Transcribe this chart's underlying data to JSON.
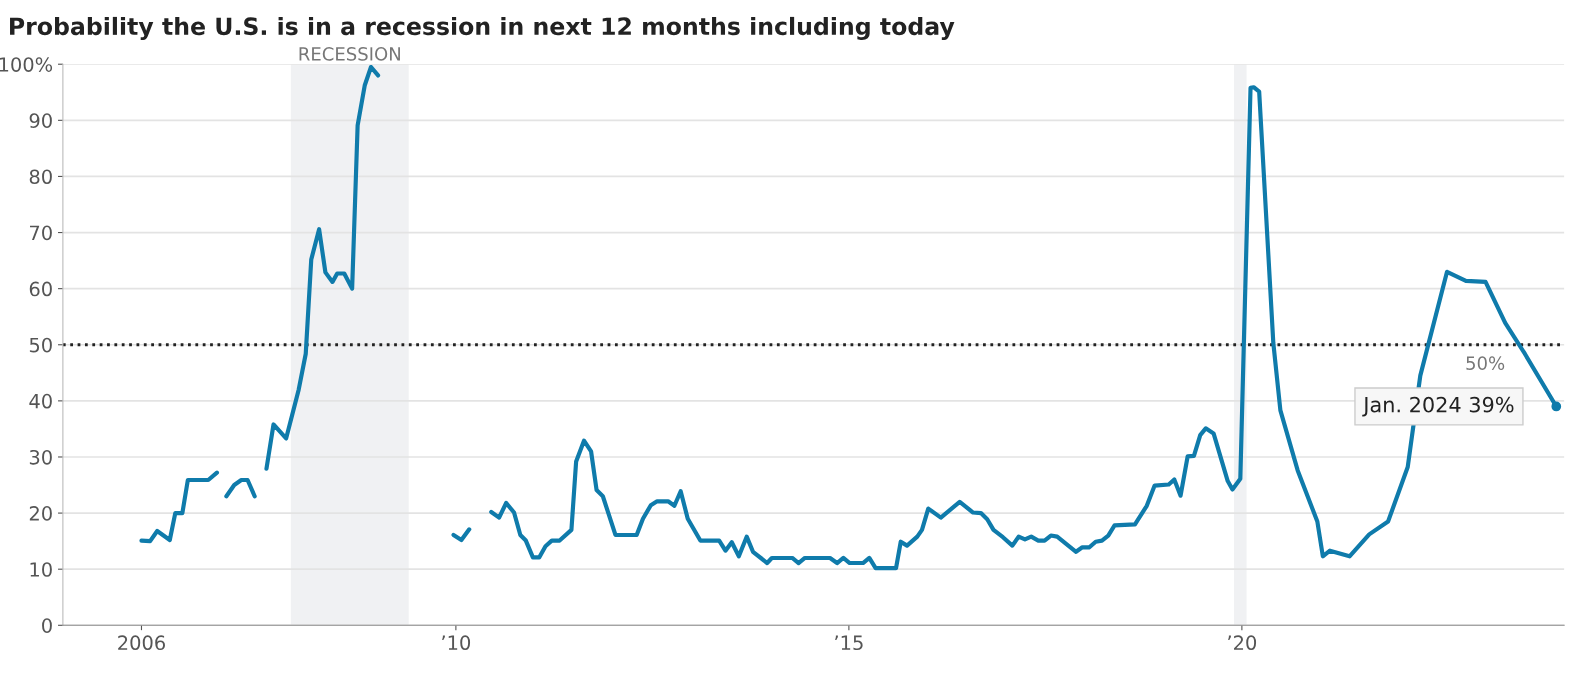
{
  "chart_data": {
    "type": "line",
    "title": "Probability the U.S. is in a recession in next 12 months including today",
    "xlim": [
      2005.0,
      2024.1
    ],
    "ylim": [
      0,
      100
    ],
    "xticks": [
      {
        "value": 2006,
        "label": "2006"
      },
      {
        "value": 2010,
        "label": "’10"
      },
      {
        "value": 2015,
        "label": "’15"
      },
      {
        "value": 2020,
        "label": "’20"
      }
    ],
    "yticks": [
      0,
      10,
      20,
      30,
      40,
      50,
      60,
      70,
      80,
      90,
      {
        "value": 100,
        "label": "100%"
      }
    ],
    "grid": "y",
    "legend": false,
    "marker": "none",
    "line_style": "solid",
    "bands": [
      {
        "axis": "x",
        "from": 2007.9,
        "to": 2009.4,
        "label": "RECESSION",
        "color": "#f0f1f3"
      },
      {
        "axis": "x",
        "from": 2019.9,
        "to": 2020.06,
        "color": "#f0f1f3"
      }
    ],
    "ref_lines": [
      {
        "axis": "y",
        "value": 50,
        "label": "50%",
        "color": "#222222",
        "line_style": "dotted"
      }
    ],
    "annotations": [
      {
        "text": "Jan. 2024 39%",
        "x": 2024.0,
        "y": 39
      }
    ],
    "series": [
      {
        "color": "#0f7bab",
        "x": [
          2006.0,
          2006.11,
          2006.2,
          2006.36,
          2006.43,
          2006.52,
          2006.59,
          2006.85,
          2006.96,
          2007.02,
          2007.08,
          2007.18,
          2007.27,
          2007.35,
          2007.44,
          2007.52,
          2007.59,
          2007.68,
          2007.84,
          2008.0,
          2008.09,
          2008.16,
          2008.26,
          2008.34,
          2008.43,
          2008.49,
          2008.58,
          2008.68,
          2008.75,
          2008.84,
          2008.92,
          2009.01,
          2009.5,
          2009.97,
          2010.07,
          2010.17,
          2010.3,
          2010.45,
          2010.55,
          2010.64,
          2010.74,
          2010.82,
          2010.89,
          2010.98,
          2011.06,
          2011.14,
          2011.22,
          2011.32,
          2011.47,
          2011.53,
          2011.63,
          2011.72,
          2011.79,
          2011.87,
          2012.03,
          2012.3,
          2012.38,
          2012.48,
          2012.56,
          2012.7,
          2012.78,
          2012.86,
          2012.95,
          2013.11,
          2013.35,
          2013.43,
          2013.51,
          2013.6,
          2013.7,
          2013.78,
          2013.96,
          2014.02,
          2014.28,
          2014.36,
          2014.44,
          2014.76,
          2014.85,
          2014.93,
          2015.01,
          2015.18,
          2015.26,
          2015.34,
          2015.6,
          2015.66,
          2015.74,
          2015.87,
          2015.93,
          2016.01,
          2016.17,
          2016.41,
          2016.58,
          2016.68,
          2016.76,
          2016.84,
          2016.96,
          2017.08,
          2017.16,
          2017.24,
          2017.32,
          2017.41,
          2017.49,
          2017.57,
          2017.65,
          2017.89,
          2017.97,
          2018.06,
          2018.14,
          2018.22,
          2018.3,
          2018.38,
          2018.64,
          2018.79,
          2018.89,
          2019.07,
          2019.14,
          2019.22,
          2019.31,
          2019.39,
          2019.47,
          2019.54,
          2019.64,
          2019.82,
          2019.88,
          2019.98,
          2020.11,
          2020.15,
          2020.22,
          2020.4,
          2020.49,
          2020.71,
          2020.96,
          2021.03,
          2021.12,
          2021.37,
          2021.62,
          2021.86,
          2022.11,
          2022.27,
          2022.61,
          2022.85,
          2023.1,
          2023.35,
          2023.6,
          2024.0
        ],
        "values": [
          15.1,
          15,
          16.8,
          15.2,
          20,
          20,
          25.9,
          25.9,
          27.2,
          null,
          23,
          25,
          25.9,
          25.9,
          23,
          null,
          27.9,
          35.8,
          33.3,
          42,
          48.4,
          65.2,
          70.6,
          62.9,
          61.2,
          62.7,
          62.7,
          60,
          89.1,
          96.2,
          99.5,
          98,
          null,
          16.1,
          15.2,
          17.1,
          null,
          20.2,
          19.2,
          21.8,
          20.1,
          16.1,
          15.1,
          12.1,
          12.1,
          14.1,
          15.1,
          15.1,
          17,
          29.2,
          32.9,
          31,
          24.1,
          23,
          16.1,
          16.1,
          19,
          21.4,
          22.1,
          22.1,
          21.3,
          23.9,
          19,
          15.1,
          15.1,
          13.3,
          14.8,
          12.3,
          15.8,
          13.1,
          11.1,
          12,
          12,
          11.1,
          12,
          12,
          11.1,
          12,
          11.1,
          11.1,
          12,
          10.2,
          10.2,
          14.9,
          14.2,
          15.8,
          17,
          20.8,
          19.2,
          22,
          20.1,
          20,
          18.9,
          17,
          15.7,
          14.2,
          15.8,
          15.3,
          15.8,
          15.1,
          15.1,
          16,
          15.8,
          13.1,
          13.9,
          13.9,
          14.9,
          15.1,
          16,
          17.8,
          18,
          21.3,
          24.9,
          25.1,
          26,
          23.1,
          30.1,
          30.2,
          33.9,
          35.1,
          34.2,
          25.7,
          24.2,
          26.1,
          95.8,
          95.9,
          95.1,
          50.3,
          38.3,
          27.6,
          18.5,
          12.3,
          13.3,
          12.3,
          16.2,
          18.5,
          28.2,
          44.5,
          63,
          61.4,
          61.2,
          53.9,
          48.4,
          39
        ]
      }
    ]
  }
}
